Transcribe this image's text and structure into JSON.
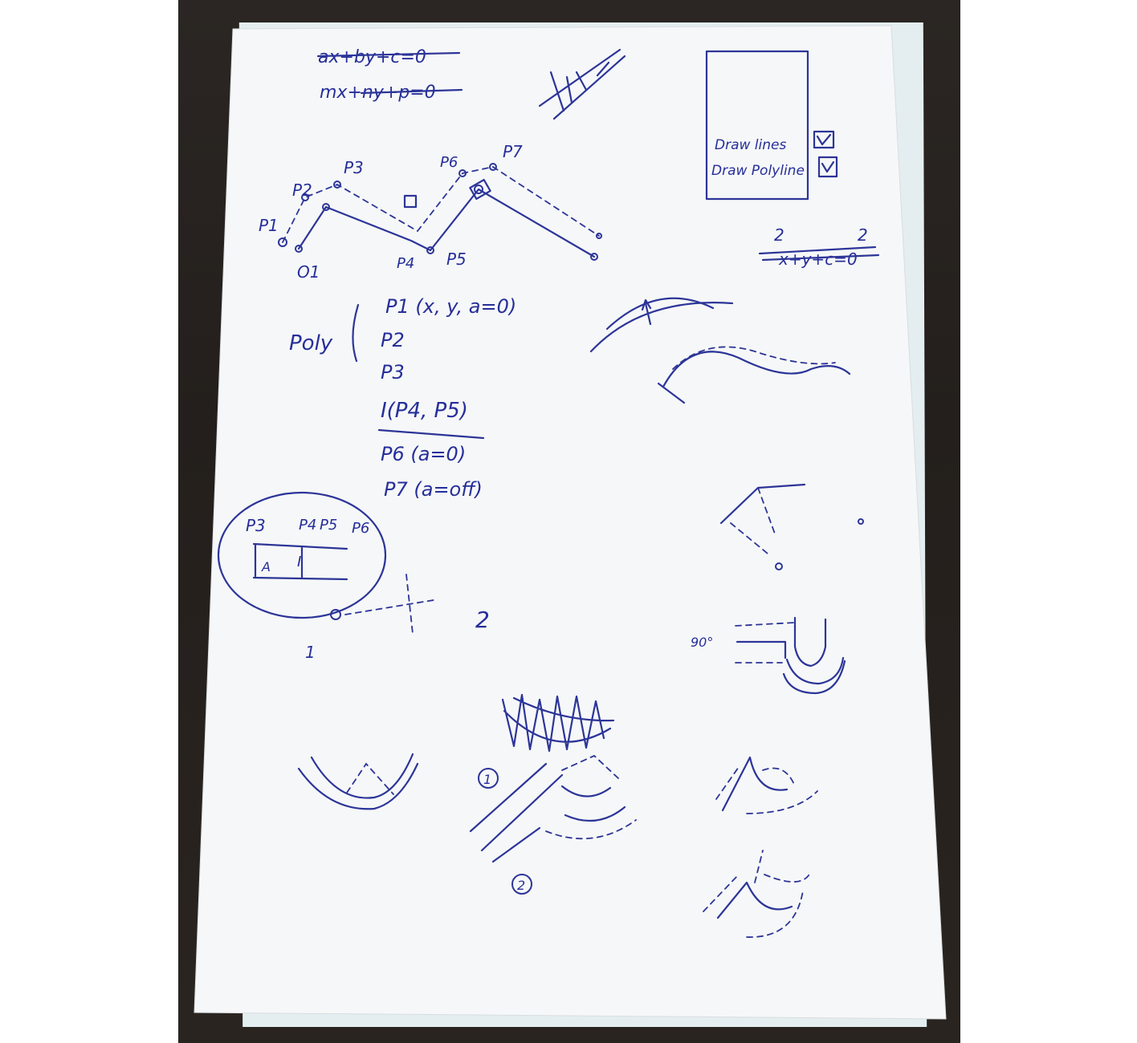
{
  "sketch": {
    "equation_a": "ax+by+c=0",
    "equation_b": "mx+ny+p=0",
    "checkbox_label_1": "Draw lines",
    "checkbox_label_2": "Draw Polyline",
    "points": [
      "P1",
      "P2",
      "P3",
      "P4",
      "P5",
      "P6",
      "P7"
    ],
    "offset_label": "O1",
    "list_title": "Poly",
    "list_lines": [
      "P1 (x, y, a=0)",
      "P2",
      "P3",
      "I(P4, P5)",
      "P6 (a=0)",
      "P7 (a=off)"
    ],
    "circle_labels": [
      "P3",
      "P4",
      "P5",
      "P6"
    ],
    "circle_marks": [
      "A",
      "I"
    ],
    "small_numbers": [
      "1",
      "2"
    ],
    "angle_label": "90°",
    "circled_numbers": [
      "1",
      "2"
    ],
    "right_equation_digits": [
      "2",
      "2"
    ],
    "right_equation": "x+y+c=0"
  }
}
